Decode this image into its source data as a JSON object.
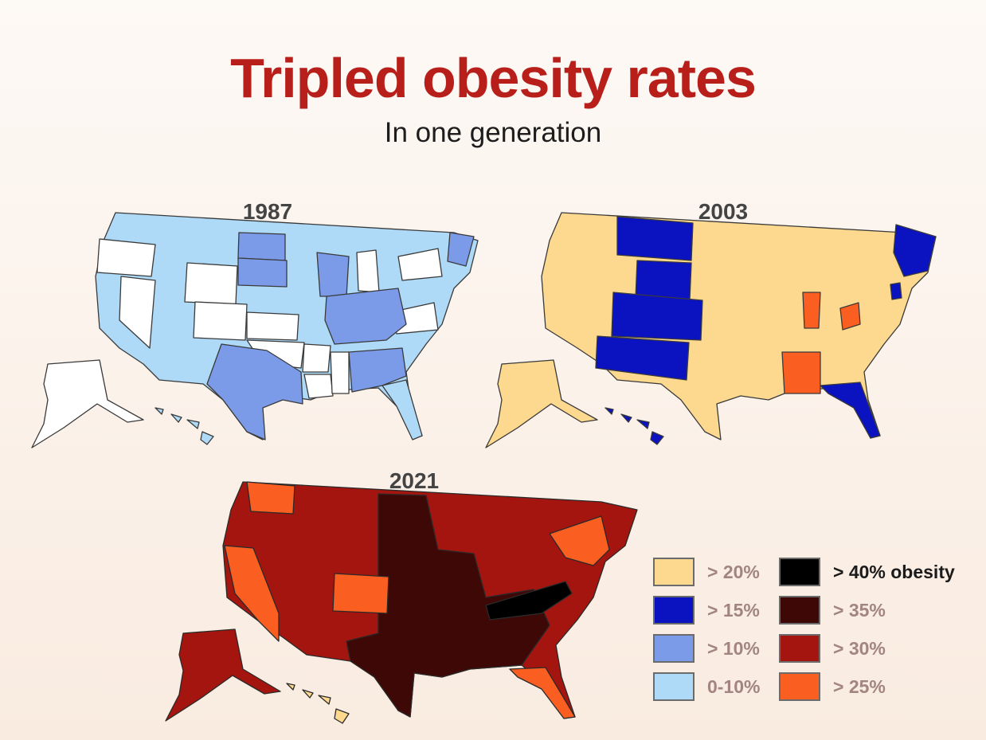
{
  "title": "Tripled obesity rates",
  "subtitle": "In one generation",
  "maps": [
    {
      "year": "1987"
    },
    {
      "year": "2003"
    },
    {
      "year": "2021"
    }
  ],
  "legend": [
    {
      "label": "> 20%",
      "color": "#fcd98e"
    },
    {
      "label": "> 15%",
      "color": "#0b12bf"
    },
    {
      "label": "> 10%",
      "color": "#7b9be9"
    },
    {
      "label": "0-10%",
      "color": "#aedaf7"
    },
    {
      "label": "> 40% obesity",
      "color": "#000000"
    },
    {
      "label": "> 35%",
      "color": "#3e0807"
    },
    {
      "label": "> 30%",
      "color": "#a3150e"
    },
    {
      "label": "> 25%",
      "color": "#fa5e21"
    }
  ]
}
